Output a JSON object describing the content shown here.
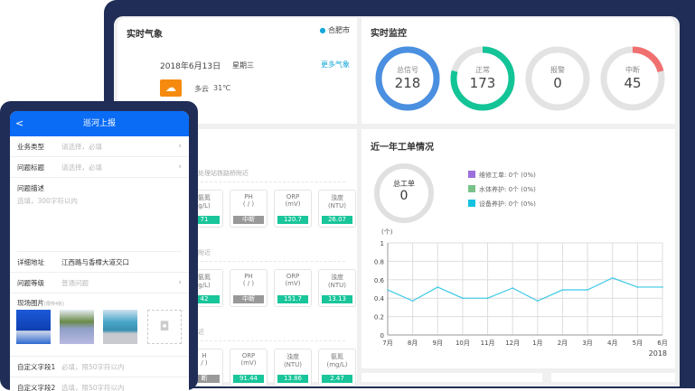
{
  "weather": {
    "title": "实时气象",
    "city": "合肥市",
    "date": "2018年6月13日",
    "weekday": "星期三",
    "more": "更多气象",
    "condition": "多云",
    "temp": "31℃",
    "icon": "partly-cloudy-icon",
    "accent": "#f58a0e"
  },
  "monitor": {
    "title": "实时监控",
    "rings": [
      {
        "label": "总信号",
        "value": "218",
        "fraction": 1.0,
        "color": "#4a8fe0"
      },
      {
        "label": "正常",
        "value": "173",
        "fraction": 0.79,
        "color": "#13c497"
      },
      {
        "label": "报警",
        "value": "0",
        "fraction": 0,
        "color": "#e24a4a"
      },
      {
        "label": "中断",
        "value": "45",
        "fraction": 0.21,
        "color": "#f07070"
      }
    ]
  },
  "stations": [
    {
      "name": "河处理站铁路桥附近",
      "sensors": [
        {
          "name": "氨氮",
          "unit": "g/L)",
          "value": "71",
          "status": "ok"
        },
        {
          "name": "PH",
          "unit": "( / )",
          "value": "中断",
          "status": "off"
        },
        {
          "name": "ORP",
          "unit": "(mV)",
          "value": "120.7",
          "status": "ok"
        },
        {
          "name": "浊度",
          "unit": "(NTU)",
          "value": "26.07",
          "status": "ok"
        }
      ]
    },
    {
      "name": "桥附近",
      "sensors": [
        {
          "name": "氨氮",
          "unit": "g/L)",
          "value": "42",
          "status": "ok"
        },
        {
          "name": "PH",
          "unit": "( / )",
          "value": "中断",
          "status": "off"
        },
        {
          "name": "ORP",
          "unit": "(mV)",
          "value": "151.7",
          "status": "ok"
        },
        {
          "name": "浊度",
          "unit": "(NTU)",
          "value": "13.13",
          "status": "ok"
        }
      ]
    },
    {
      "name": "附近",
      "sensors": [
        {
          "name": "H",
          "unit": "/ )",
          "value": "断",
          "status": "off"
        },
        {
          "name": "ORP",
          "unit": "(mV)",
          "value": "91.44",
          "status": "ok"
        },
        {
          "name": "浊度",
          "unit": "(NTU)",
          "value": "13.86",
          "status": "ok"
        },
        {
          "name": "氨氮",
          "unit": "(mg/L)",
          "value": "2.47",
          "status": "ok"
        }
      ]
    }
  ],
  "workorders": {
    "title": "近一年工单情况",
    "total_label": "总工单",
    "total": "0",
    "legend": [
      {
        "label": "维修工单:  0个  (0%)",
        "color": "#9b6fdc"
      },
      {
        "label": "水体养护:  0个  (0%)",
        "color": "#78c28a"
      },
      {
        "label": "设备养护:  0个  (0%)",
        "color": "#12c2e0"
      }
    ]
  },
  "chart_data": {
    "type": "line",
    "ylabel": "(个)",
    "ylim": [
      0,
      1
    ],
    "yticks": [
      "0",
      "0.2",
      "0.4",
      "0.6",
      "0.8",
      "1"
    ],
    "categories": [
      "7月",
      "8月",
      "9月",
      "10月",
      "11月",
      "12月",
      "1月",
      "2月",
      "3月",
      "4月",
      "5月",
      "6月"
    ],
    "year_label": "2018",
    "values": [
      0.49,
      0.37,
      0.52,
      0.4,
      0.4,
      0.51,
      0.37,
      0.49,
      0.49,
      0.62,
      0.52,
      0.52
    ],
    "color": "#3cc8e6",
    "grid": true
  },
  "phone": {
    "title": "巡河上报",
    "back": "<",
    "fields": [
      {
        "label": "业务类型",
        "placeholder": "请选择，必填"
      },
      {
        "label": "问题标题",
        "placeholder": "请选择，必填"
      }
    ],
    "desc_label": "问题描述",
    "desc_placeholder": "选填，300字符以内",
    "address_label": "详细地址",
    "address_value": "江西路与香樟大道交口",
    "level_label": "问题等级",
    "level_value": "普通问题",
    "photos_label": "现场图片",
    "photos_hint": "(限传4张)",
    "custom1_label": "自定义字段1",
    "custom1_placeholder": "必填，限50字符以内",
    "custom2_label": "自定义字段2",
    "custom2_placeholder": "选填，限50字符以内"
  }
}
